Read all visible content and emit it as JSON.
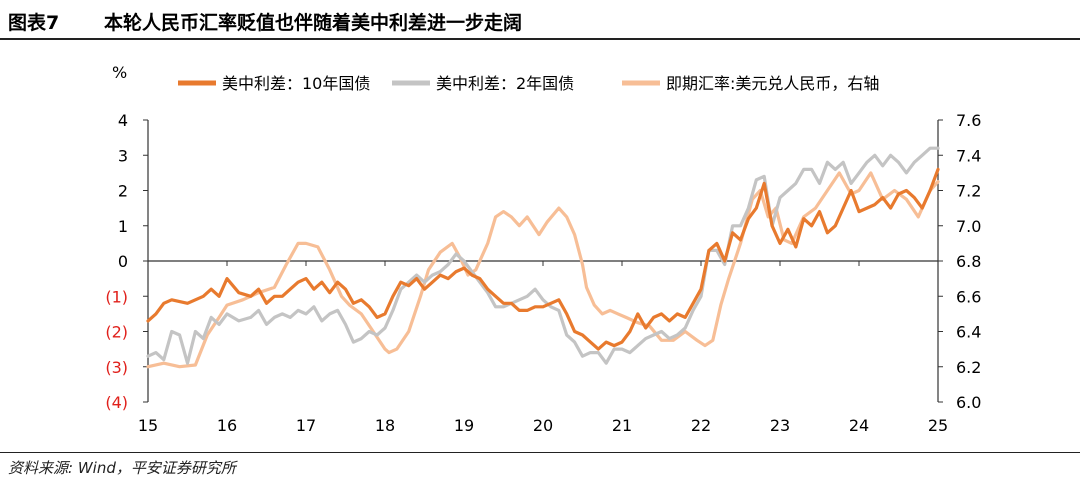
{
  "header": {
    "figure_label": "图表7",
    "title": "本轮人民币汇率贬值也伴随着美中利差进一步走阔"
  },
  "footer": {
    "source": "资料来源: Wind，平安证券研究所"
  },
  "chart_data": {
    "type": "line",
    "title": "",
    "xlabel": "",
    "ylabel": "%",
    "y_right_label": "",
    "xlim": [
      15,
      25
    ],
    "x_ticks": [
      15,
      16,
      17,
      18,
      19,
      20,
      21,
      22,
      23,
      24,
      25
    ],
    "x_tick_labels": [
      "15",
      "16",
      "17",
      "18",
      "19",
      "20",
      "21",
      "22",
      "23",
      "24",
      "25"
    ],
    "ylim_left": [
      -4,
      4
    ],
    "y_left_ticks": [
      4,
      3,
      2,
      1,
      0,
      -1,
      -2,
      -3,
      -4
    ],
    "y_left_tick_labels": [
      "4",
      "3",
      "2",
      "1",
      "0",
      "(1)",
      "(2)",
      "(3)",
      "(4)"
    ],
    "ylim_right": [
      6.0,
      7.6
    ],
    "y_right_ticks": [
      7.6,
      7.4,
      7.2,
      7.0,
      6.8,
      6.6,
      6.4,
      6.2,
      6.0
    ],
    "y_right_tick_labels": [
      "7.6",
      "7.4",
      "7.2",
      "7.0",
      "6.8",
      "6.6",
      "6.4",
      "6.2",
      "6.0"
    ],
    "zero_line": true,
    "grid": false,
    "legend_position": "top",
    "colors": {
      "spread_10y": "#E87A2E",
      "spread_2y": "#C4C4C4",
      "usdcny": "#F7BE96",
      "negative_tick": "#E0201B"
    },
    "series": [
      {
        "name": "美中利差：10年国债",
        "axis": "left",
        "x": [
          15.0,
          15.1,
          15.2,
          15.3,
          15.5,
          15.7,
          15.8,
          15.9,
          16.0,
          16.15,
          16.3,
          16.4,
          16.5,
          16.6,
          16.7,
          16.8,
          16.9,
          17.0,
          17.1,
          17.2,
          17.3,
          17.4,
          17.5,
          17.6,
          17.7,
          17.8,
          17.9,
          18.0,
          18.1,
          18.2,
          18.3,
          18.4,
          18.5,
          18.6,
          18.7,
          18.8,
          18.9,
          19.0,
          19.1,
          19.2,
          19.3,
          19.4,
          19.5,
          19.6,
          19.7,
          19.8,
          19.9,
          20.0,
          20.1,
          20.2,
          20.3,
          20.4,
          20.5,
          20.6,
          20.7,
          20.8,
          20.9,
          21.0,
          21.1,
          21.2,
          21.3,
          21.4,
          21.5,
          21.6,
          21.7,
          21.8,
          21.9,
          22.0,
          22.1,
          22.2,
          22.3,
          22.4,
          22.5,
          22.6,
          22.7,
          22.8,
          22.9,
          23.0,
          23.1,
          23.2,
          23.3,
          23.4,
          23.5,
          23.6,
          23.7,
          23.8,
          23.9,
          24.0,
          24.1,
          24.2,
          24.3,
          24.4,
          24.5,
          24.6,
          24.7,
          24.8,
          24.9,
          25.0
        ],
        "values": [
          -1.7,
          -1.5,
          -1.2,
          -1.1,
          -1.2,
          -1.0,
          -0.8,
          -1.0,
          -0.5,
          -0.9,
          -1.0,
          -0.8,
          -1.2,
          -1.0,
          -1.0,
          -0.8,
          -0.6,
          -0.5,
          -0.8,
          -0.6,
          -0.9,
          -0.6,
          -0.8,
          -1.2,
          -1.1,
          -1.3,
          -1.6,
          -1.5,
          -1.0,
          -0.6,
          -0.7,
          -0.5,
          -0.8,
          -0.6,
          -0.4,
          -0.5,
          -0.3,
          -0.2,
          -0.4,
          -0.5,
          -0.8,
          -1.0,
          -1.2,
          -1.2,
          -1.4,
          -1.4,
          -1.3,
          -1.3,
          -1.2,
          -1.1,
          -1.5,
          -2.0,
          -2.1,
          -2.3,
          -2.5,
          -2.3,
          -2.4,
          -2.3,
          -2.0,
          -1.5,
          -1.9,
          -1.6,
          -1.5,
          -1.7,
          -1.5,
          -1.6,
          -1.2,
          -0.8,
          0.3,
          0.5,
          0.0,
          0.8,
          0.6,
          1.2,
          1.5,
          2.2,
          1.0,
          0.5,
          0.9,
          0.4,
          1.2,
          1.0,
          1.4,
          0.8,
          1.0,
          1.5,
          2.0,
          1.4,
          1.5,
          1.6,
          1.8,
          1.5,
          1.9,
          2.0,
          1.8,
          1.5,
          2.0,
          2.6
        ]
      },
      {
        "name": "美中利差：2年国债",
        "axis": "left",
        "x": [
          15.0,
          15.1,
          15.2,
          15.3,
          15.4,
          15.5,
          15.6,
          15.7,
          15.8,
          15.9,
          16.0,
          16.15,
          16.3,
          16.4,
          16.5,
          16.6,
          16.7,
          16.8,
          16.9,
          17.0,
          17.1,
          17.2,
          17.3,
          17.4,
          17.5,
          17.6,
          17.7,
          17.8,
          17.9,
          18.0,
          18.1,
          18.2,
          18.3,
          18.4,
          18.5,
          18.6,
          18.7,
          18.8,
          18.9,
          19.0,
          19.1,
          19.2,
          19.3,
          19.4,
          19.5,
          19.6,
          19.7,
          19.8,
          19.9,
          20.0,
          20.1,
          20.2,
          20.3,
          20.4,
          20.5,
          20.6,
          20.7,
          20.8,
          20.9,
          21.0,
          21.1,
          21.2,
          21.3,
          21.4,
          21.5,
          21.6,
          21.7,
          21.8,
          21.9,
          22.0,
          22.1,
          22.2,
          22.3,
          22.4,
          22.5,
          22.6,
          22.7,
          22.8,
          22.9,
          23.0,
          23.1,
          23.2,
          23.3,
          23.4,
          23.5,
          23.6,
          23.7,
          23.8,
          23.9,
          24.0,
          24.1,
          24.2,
          24.3,
          24.4,
          24.5,
          24.6,
          24.7,
          24.8,
          24.9,
          25.0
        ],
        "values": [
          -2.7,
          -2.6,
          -2.8,
          -2.0,
          -2.1,
          -2.9,
          -2.0,
          -2.2,
          -1.6,
          -1.8,
          -1.5,
          -1.7,
          -1.6,
          -1.4,
          -1.8,
          -1.6,
          -1.5,
          -1.6,
          -1.4,
          -1.5,
          -1.3,
          -1.7,
          -1.5,
          -1.4,
          -1.8,
          -2.3,
          -2.2,
          -2.0,
          -2.1,
          -1.9,
          -1.4,
          -0.8,
          -0.6,
          -0.4,
          -0.6,
          -0.4,
          -0.3,
          -0.1,
          0.2,
          0.0,
          -0.3,
          -0.6,
          -0.9,
          -1.3,
          -1.3,
          -1.2,
          -1.1,
          -1.0,
          -0.8,
          -1.1,
          -1.3,
          -1.4,
          -2.1,
          -2.3,
          -2.7,
          -2.6,
          -2.6,
          -2.9,
          -2.5,
          -2.5,
          -2.6,
          -2.4,
          -2.2,
          -2.1,
          -2.0,
          -2.2,
          -2.1,
          -1.9,
          -1.4,
          -1.0,
          0.3,
          0.3,
          -0.1,
          1.0,
          1.0,
          1.5,
          2.3,
          2.4,
          1.0,
          1.8,
          2.0,
          2.2,
          2.6,
          2.6,
          2.2,
          2.8,
          2.6,
          2.8,
          2.2,
          2.5,
          2.8,
          3.0,
          2.7,
          3.0,
          2.8,
          2.5,
          2.8,
          3.0,
          3.2,
          3.2
        ]
      },
      {
        "name": "即期汇率:美元兑人民币，右轴",
        "axis": "right",
        "x": [
          15.0,
          15.2,
          15.4,
          15.6,
          15.75,
          15.9,
          16.0,
          16.2,
          16.4,
          16.6,
          16.75,
          16.9,
          17.0,
          17.15,
          17.3,
          17.45,
          17.55,
          17.7,
          17.85,
          18.0,
          18.05,
          18.15,
          18.3,
          18.45,
          18.55,
          18.7,
          18.85,
          18.95,
          19.05,
          19.15,
          19.3,
          19.4,
          19.5,
          19.6,
          19.7,
          19.8,
          19.95,
          20.05,
          20.2,
          20.3,
          20.4,
          20.5,
          20.55,
          20.65,
          20.75,
          20.85,
          20.95,
          21.05,
          21.2,
          21.35,
          21.5,
          21.65,
          21.8,
          21.95,
          22.05,
          22.15,
          22.25,
          22.35,
          22.5,
          22.65,
          22.75,
          22.85,
          22.95,
          23.05,
          23.15,
          23.3,
          23.45,
          23.6,
          23.75,
          23.9,
          24.0,
          24.15,
          24.3,
          24.45,
          24.6,
          24.75,
          24.9,
          25.0
        ],
        "values": [
          6.2,
          6.22,
          6.2,
          6.21,
          6.38,
          6.48,
          6.55,
          6.58,
          6.62,
          6.65,
          6.78,
          6.9,
          6.9,
          6.88,
          6.75,
          6.6,
          6.55,
          6.5,
          6.4,
          6.3,
          6.28,
          6.3,
          6.4,
          6.6,
          6.75,
          6.85,
          6.9,
          6.82,
          6.72,
          6.75,
          6.9,
          7.05,
          7.08,
          7.05,
          7.0,
          7.05,
          6.95,
          7.02,
          7.1,
          7.05,
          6.95,
          6.78,
          6.65,
          6.55,
          6.5,
          6.52,
          6.5,
          6.48,
          6.45,
          6.43,
          6.35,
          6.35,
          6.4,
          6.35,
          6.32,
          6.35,
          6.55,
          6.7,
          6.9,
          7.15,
          7.2,
          7.05,
          7.1,
          6.92,
          6.9,
          7.05,
          7.1,
          7.2,
          7.3,
          7.18,
          7.2,
          7.3,
          7.15,
          7.2,
          7.15,
          7.05,
          7.2,
          7.25
        ]
      }
    ]
  }
}
